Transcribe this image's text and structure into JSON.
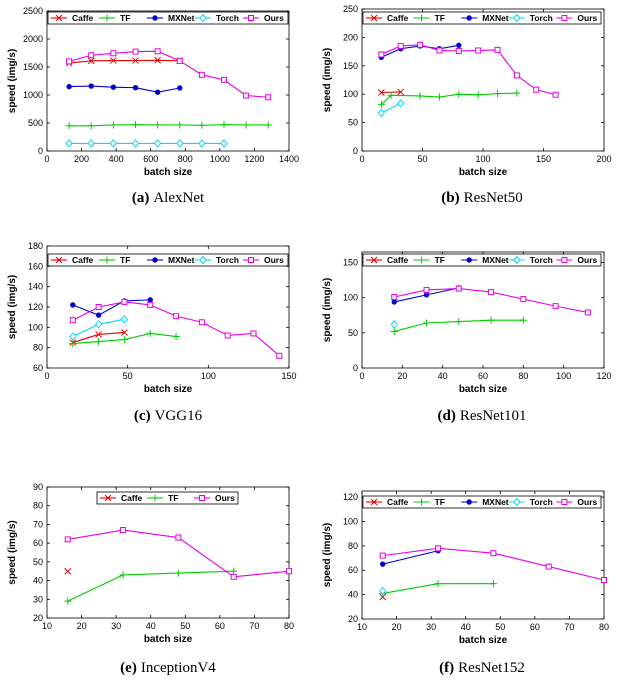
{
  "chart_data": [
    {
      "type": "line",
      "caption_letter": "(a)",
      "caption": "AlexNet",
      "xlabel": "batch size",
      "ylabel": "speed (img/s)",
      "xlim": [
        0,
        1400
      ],
      "ylim": [
        0,
        2500
      ],
      "xticks": [
        0,
        200,
        400,
        600,
        800,
        1000,
        1200,
        1400
      ],
      "yticks": [
        0,
        500,
        1000,
        1500,
        2000,
        2500
      ],
      "legend_columns": 5,
      "series": [
        {
          "name": "Caffe",
          "color": "#e60000",
          "marker": "x",
          "x": [
            128,
            256,
            384,
            512,
            640,
            768
          ],
          "y": [
            1570,
            1610,
            1615,
            1615,
            1620,
            1610
          ]
        },
        {
          "name": "TF",
          "color": "#00cc00",
          "marker": "plus",
          "x": [
            128,
            256,
            384,
            512,
            640,
            768,
            896,
            1024,
            1152,
            1280
          ],
          "y": [
            450,
            450,
            465,
            470,
            465,
            465,
            460,
            470,
            465,
            465
          ]
        },
        {
          "name": "MXNet",
          "color": "#0000cc",
          "marker": "dot",
          "x": [
            128,
            256,
            384,
            512,
            640,
            768
          ],
          "y": [
            1150,
            1160,
            1140,
            1130,
            1050,
            1125
          ]
        },
        {
          "name": "Torch",
          "color": "#00d8ff",
          "marker": "diamond",
          "x": [
            128,
            256,
            384,
            512,
            640,
            768,
            896,
            1024
          ],
          "y": [
            135,
            135,
            135,
            135,
            135,
            135,
            135,
            135
          ]
        },
        {
          "name": "Ours",
          "color": "#e600e6",
          "marker": "square",
          "x": [
            128,
            256,
            384,
            512,
            640,
            768,
            896,
            1024,
            1152,
            1280
          ],
          "y": [
            1600,
            1710,
            1745,
            1775,
            1780,
            1610,
            1360,
            1270,
            990,
            960
          ]
        }
      ]
    },
    {
      "type": "line",
      "caption_letter": "(b)",
      "caption": "ResNet50",
      "xlabel": "batch size",
      "ylabel": "speed (img/s)",
      "xlim": [
        0,
        200
      ],
      "ylim": [
        0,
        250
      ],
      "xticks": [
        0,
        50,
        100,
        150,
        200
      ],
      "yticks": [
        0,
        50,
        100,
        150,
        200,
        250
      ],
      "legend_columns": 5,
      "series": [
        {
          "name": "Caffe",
          "color": "#e60000",
          "marker": "x",
          "x": [
            16,
            32
          ],
          "y": [
            103,
            104
          ]
        },
        {
          "name": "TF",
          "color": "#00cc00",
          "marker": "plus",
          "x": [
            16,
            24,
            48,
            64,
            80,
            96,
            112,
            128
          ],
          "y": [
            82,
            98,
            97,
            95,
            100,
            99,
            101,
            102
          ]
        },
        {
          "name": "MXNet",
          "color": "#0000cc",
          "marker": "dot",
          "x": [
            16,
            32,
            48,
            64,
            80
          ],
          "y": [
            165,
            180,
            185,
            180,
            186
          ]
        },
        {
          "name": "Torch",
          "color": "#00d8ff",
          "marker": "diamond",
          "x": [
            16,
            32
          ],
          "y": [
            67,
            84
          ]
        },
        {
          "name": "Ours",
          "color": "#e600e6",
          "marker": "square",
          "x": [
            16,
            32,
            48,
            64,
            80,
            96,
            112,
            128,
            144,
            160
          ],
          "y": [
            170,
            185,
            187,
            177,
            176,
            177,
            178,
            133,
            108,
            99
          ]
        }
      ]
    },
    {
      "type": "line",
      "caption_letter": "(c)",
      "caption": "VGG16",
      "xlabel": "batch size",
      "ylabel": "speed (img/s)",
      "xlim": [
        0,
        150
      ],
      "ylim": [
        60,
        180
      ],
      "xticks": [
        0,
        50,
        100,
        150
      ],
      "yticks": [
        60,
        80,
        100,
        120,
        140,
        160,
        180
      ],
      "legend_columns": 5,
      "series": [
        {
          "name": "Caffe",
          "color": "#e60000",
          "marker": "x",
          "x": [
            16,
            32,
            48
          ],
          "y": [
            85,
            93,
            95
          ]
        },
        {
          "name": "TF",
          "color": "#00cc00",
          "marker": "plus",
          "x": [
            16,
            32,
            48,
            64,
            80
          ],
          "y": [
            84,
            86,
            88,
            94,
            91
          ]
        },
        {
          "name": "MXNet",
          "color": "#0000cc",
          "marker": "dot",
          "x": [
            16,
            32,
            48,
            64
          ],
          "y": [
            122,
            112,
            126,
            127
          ]
        },
        {
          "name": "Torch",
          "color": "#00d8ff",
          "marker": "diamond",
          "x": [
            16,
            32,
            48
          ],
          "y": [
            91,
            103,
            108
          ]
        },
        {
          "name": "Ours",
          "color": "#e600e6",
          "marker": "square",
          "x": [
            16,
            32,
            48,
            64,
            80,
            96,
            112,
            128,
            144
          ],
          "y": [
            107,
            120,
            125,
            122,
            111,
            105,
            92,
            94,
            72
          ]
        }
      ]
    },
    {
      "type": "line",
      "caption_letter": "(d)",
      "caption": "ResNet101",
      "xlabel": "batch size",
      "ylabel": "speed (img/s)",
      "xlim": [
        0,
        120
      ],
      "ylim": [
        0,
        165
      ],
      "xticks": [
        0,
        20,
        40,
        60,
        80,
        100,
        120
      ],
      "yticks": [
        0,
        50,
        100,
        150
      ],
      "legend_columns": 5,
      "series": [
        {
          "name": "Caffe",
          "color": "#e60000",
          "marker": "x",
          "x": [],
          "y": []
        },
        {
          "name": "TF",
          "color": "#00cc00",
          "marker": "plus",
          "x": [
            16,
            32,
            48,
            64,
            80
          ],
          "y": [
            52,
            64,
            66,
            68,
            68
          ]
        },
        {
          "name": "MXNet",
          "color": "#0000cc",
          "marker": "dot",
          "x": [
            16,
            32,
            48
          ],
          "y": [
            94,
            104,
            114
          ]
        },
        {
          "name": "Torch",
          "color": "#00d8ff",
          "marker": "diamond",
          "x": [
            16
          ],
          "y": [
            62
          ]
        },
        {
          "name": "Ours",
          "color": "#e600e6",
          "marker": "square",
          "x": [
            16,
            32,
            48,
            64,
            80,
            96,
            112
          ],
          "y": [
            101,
            111,
            113,
            108,
            98,
            88,
            79
          ]
        }
      ]
    },
    {
      "type": "line",
      "caption_letter": "(e)",
      "caption": "InceptionV4",
      "xlabel": "batch size",
      "ylabel": "speed (img/s)",
      "xlim": [
        10,
        80
      ],
      "ylim": [
        20,
        90
      ],
      "xticks": [
        10,
        20,
        30,
        40,
        50,
        60,
        70,
        80
      ],
      "yticks": [
        20,
        30,
        40,
        50,
        60,
        70,
        80,
        90
      ],
      "legend_columns": 3,
      "series": [
        {
          "name": "Caffe",
          "color": "#e60000",
          "marker": "x",
          "x": [
            16
          ],
          "y": [
            45
          ]
        },
        {
          "name": "TF",
          "color": "#00cc00",
          "marker": "plus",
          "x": [
            16,
            32,
            48,
            64
          ],
          "y": [
            29,
            43,
            44,
            45
          ]
        },
        {
          "name": "Ours",
          "color": "#e600e6",
          "marker": "square",
          "x": [
            16,
            32,
            48,
            64,
            80
          ],
          "y": [
            62,
            67,
            63,
            42,
            45
          ]
        }
      ]
    },
    {
      "type": "line",
      "caption_letter": "(f)",
      "caption": "ResNet152",
      "xlabel": "batch size",
      "ylabel": "speed (img/s)",
      "xlim": [
        10,
        80
      ],
      "ylim": [
        20,
        125
      ],
      "xticks": [
        10,
        20,
        30,
        40,
        50,
        60,
        70,
        80
      ],
      "yticks": [
        20,
        40,
        60,
        80,
        100,
        120
      ],
      "legend_columns": 5,
      "series": [
        {
          "name": "Caffe",
          "color": "#e60000",
          "marker": "x",
          "x": [
            16
          ],
          "y": [
            38
          ]
        },
        {
          "name": "TF",
          "color": "#00cc00",
          "marker": "plus",
          "x": [
            16,
            32,
            48
          ],
          "y": [
            41,
            49,
            49
          ]
        },
        {
          "name": "MXNet",
          "color": "#0000cc",
          "marker": "dot",
          "x": [
            16,
            32
          ],
          "y": [
            65,
            76
          ]
        },
        {
          "name": "Torch",
          "color": "#00d8ff",
          "marker": "diamond",
          "x": [
            16
          ],
          "y": [
            43
          ]
        },
        {
          "name": "Ours",
          "color": "#e600e6",
          "marker": "square",
          "x": [
            16,
            32,
            48,
            64,
            80
          ],
          "y": [
            72,
            78,
            74,
            63,
            52
          ]
        }
      ]
    }
  ]
}
